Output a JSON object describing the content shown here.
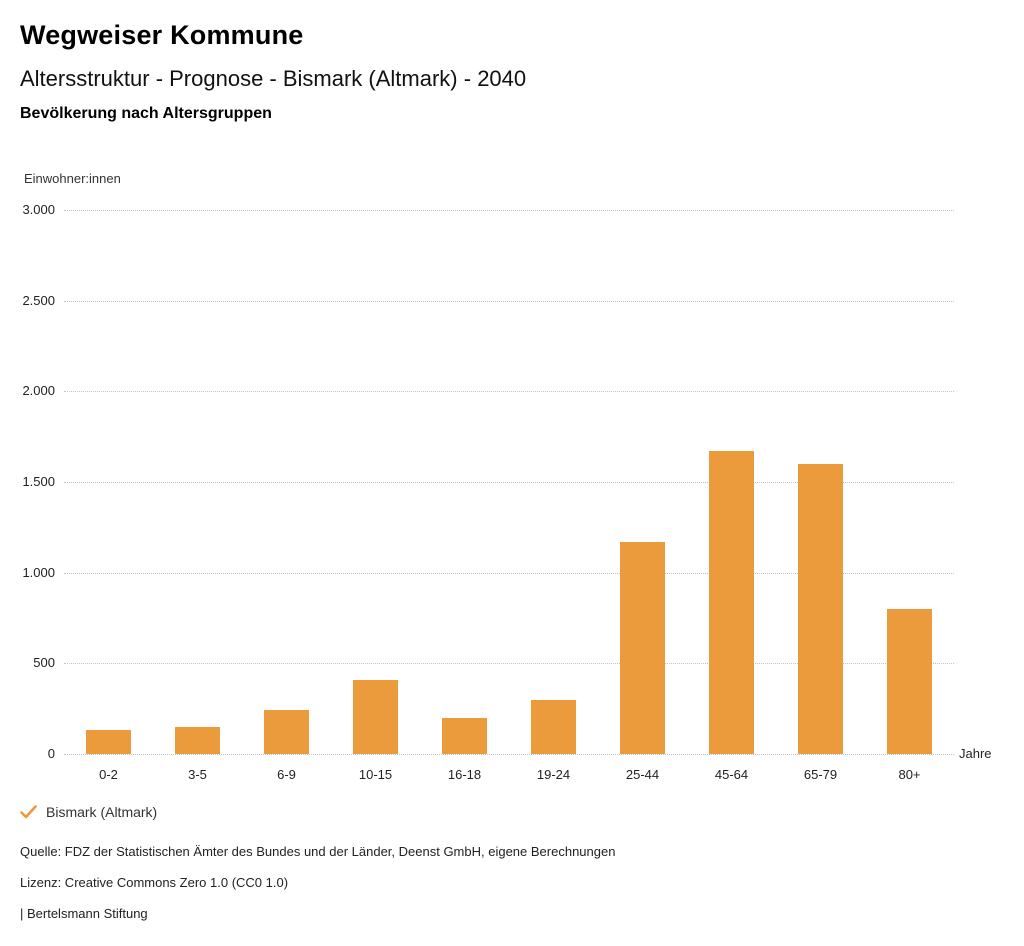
{
  "page": {
    "brand": "Wegweiser Kommune",
    "title": "Altersstruktur - Prognose - Bismark (Altmark) - 2040",
    "subtitle": "Bevölkerung nach Altersgruppen"
  },
  "chart_data": {
    "type": "bar",
    "title": "Bevölkerung nach Altersgruppen",
    "unit_label": "Einwohner:innen",
    "xlabel": "Jahre",
    "categories": [
      "0-2",
      "3-5",
      "6-9",
      "10-15",
      "16-18",
      "19-24",
      "25-44",
      "45-64",
      "65-79",
      "80+"
    ],
    "values": [
      130,
      150,
      240,
      410,
      200,
      300,
      1170,
      1670,
      1600,
      800
    ],
    "series": [
      {
        "name": "Bismark (Altmark)",
        "color": "#EB9A3C"
      }
    ],
    "ylim": [
      0,
      3000
    ],
    "yticks": [
      0,
      500,
      1000,
      1500,
      2000,
      2500,
      3000
    ],
    "ytick_labels": [
      "0",
      "500",
      "1.000",
      "1.500",
      "2.000",
      "2.500",
      "3.000"
    ],
    "grid": "horizontal-dotted",
    "legend_position": "bottom-left"
  },
  "legend": {
    "label": "Bismark (Altmark)",
    "marker": "check-icon"
  },
  "footer": {
    "source": "Quelle: FDZ der Statistischen Ämter des Bundes und der Länder, Deenst GmbH, eigene Berechnungen",
    "license": "Lizenz: Creative Commons Zero 1.0 (CC0 1.0)",
    "attribution": "| Bertelsmann Stiftung"
  },
  "colors": {
    "accent": "#EB9A3C",
    "grid": "#C3C3C3",
    "text_primary": "#111111",
    "text_secondary": "#333333"
  }
}
